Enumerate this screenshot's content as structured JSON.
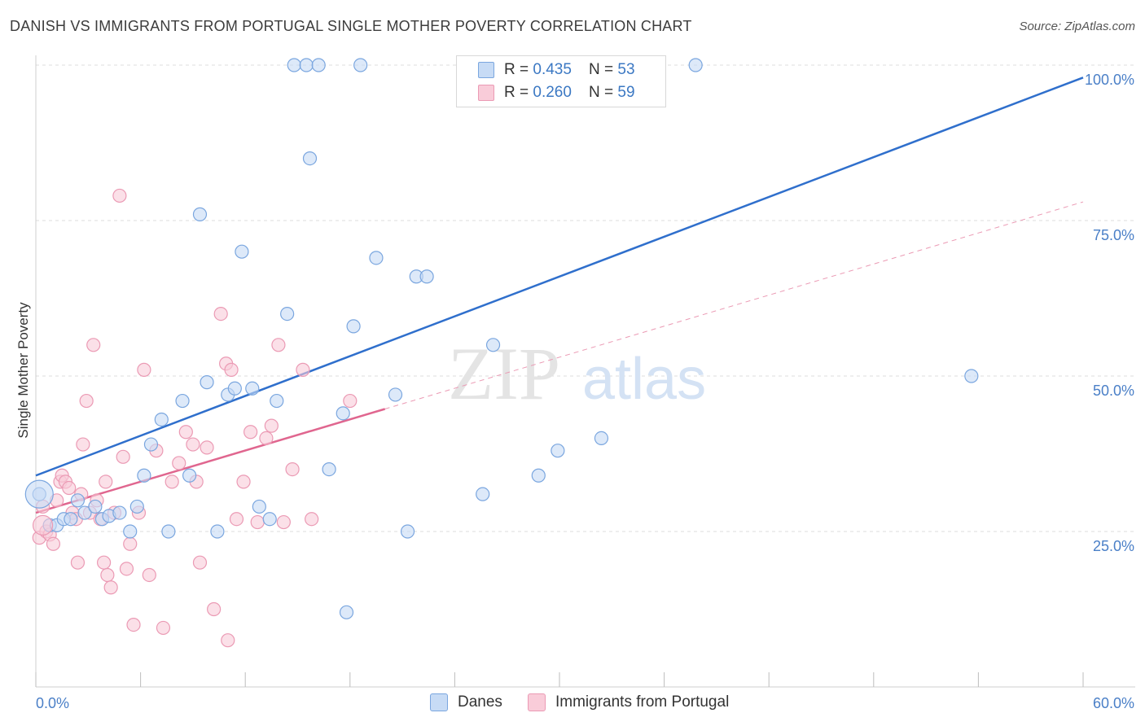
{
  "header": {
    "title": "DANISH VS IMMIGRANTS FROM PORTUGAL SINGLE MOTHER POVERTY CORRELATION CHART",
    "source": "Source: ZipAtlas.com"
  },
  "watermark": {
    "zip": "ZIP",
    "atlas": "atlas"
  },
  "legend": {
    "rows": [
      {
        "r_label": "R = ",
        "r_value": "0.435",
        "n_label": "N = ",
        "n_value": "53"
      },
      {
        "r_label": "R = ",
        "r_value": "0.260",
        "n_label": "N = ",
        "n_value": "59"
      }
    ]
  },
  "colors": {
    "danes_fill": "#c7dbf5",
    "danes_stroke": "#7aa6df",
    "danes_line": "#2f6fcc",
    "portugal_fill": "#f9ccd9",
    "portugal_stroke": "#eb9ab4",
    "portugal_line": "#e0668f",
    "grid": "#dcdcdc",
    "tick_text": "#4a7fc7"
  },
  "chart_data": {
    "type": "scatter",
    "title": "DANISH VS IMMIGRANTS FROM PORTUGAL SINGLE MOTHER POVERTY CORRELATION CHART",
    "xlabel": "",
    "ylabel": "Single Mother Poverty",
    "xlim": [
      0,
      60
    ],
    "ylim": [
      0,
      100
    ],
    "x_tick_labels": [
      "0.0%",
      "60.0%"
    ],
    "y_tick_labels": [
      "25.0%",
      "50.0%",
      "75.0%",
      "100.0%"
    ],
    "y_ticks": [
      25,
      50,
      75,
      100
    ],
    "grid": true,
    "legend_position": "top-center",
    "series": [
      {
        "name": "Danes",
        "R": 0.435,
        "N": 53,
        "trendline": {
          "x": [
            0,
            60
          ],
          "y": [
            34,
            98
          ],
          "style": "solid"
        },
        "points": [
          [
            0.2,
            31
          ],
          [
            0.8,
            26
          ],
          [
            1.2,
            26
          ],
          [
            1.6,
            27
          ],
          [
            2.0,
            27
          ],
          [
            2.4,
            30
          ],
          [
            2.8,
            28
          ],
          [
            3.4,
            29
          ],
          [
            3.8,
            27
          ],
          [
            4.2,
            27.5
          ],
          [
            4.8,
            28
          ],
          [
            5.4,
            25
          ],
          [
            5.8,
            29
          ],
          [
            6.2,
            34
          ],
          [
            6.6,
            39
          ],
          [
            7.2,
            43
          ],
          [
            7.6,
            25
          ],
          [
            8.4,
            46
          ],
          [
            8.8,
            34
          ],
          [
            9.4,
            76
          ],
          [
            9.8,
            49
          ],
          [
            10.4,
            25
          ],
          [
            11.0,
            47
          ],
          [
            11.4,
            48
          ],
          [
            11.8,
            70
          ],
          [
            12.4,
            48
          ],
          [
            12.8,
            29
          ],
          [
            13.4,
            27
          ],
          [
            13.8,
            46
          ],
          [
            14.4,
            60
          ],
          [
            14.8,
            100
          ],
          [
            15.5,
            100
          ],
          [
            15.7,
            85
          ],
          [
            16.2,
            100
          ],
          [
            16.8,
            35
          ],
          [
            17.6,
            44
          ],
          [
            17.8,
            12
          ],
          [
            18.2,
            58
          ],
          [
            18.6,
            100
          ],
          [
            19.5,
            69
          ],
          [
            20.6,
            47
          ],
          [
            21.3,
            25
          ],
          [
            21.8,
            66
          ],
          [
            22.4,
            66
          ],
          [
            25.6,
            31
          ],
          [
            26.2,
            55
          ],
          [
            26.5,
            100
          ],
          [
            28.8,
            34
          ],
          [
            29.5,
            100
          ],
          [
            29.9,
            38
          ],
          [
            32.4,
            40
          ],
          [
            37.8,
            100
          ],
          [
            53.6,
            50
          ]
        ]
      },
      {
        "name": "Immigrants from Portugal",
        "R": 0.26,
        "N": 59,
        "trendline": {
          "x": [
            0,
            20
          ],
          "y": [
            28,
            44.7
          ],
          "style": "solid"
        },
        "trendline_extended": {
          "x": [
            20,
            60
          ],
          "y": [
            44.7,
            78
          ],
          "style": "dashed"
        },
        "points": [
          [
            0.2,
            24
          ],
          [
            0.4,
            29
          ],
          [
            0.6,
            25
          ],
          [
            0.8,
            24.5
          ],
          [
            1.0,
            23
          ],
          [
            1.2,
            30
          ],
          [
            1.4,
            33
          ],
          [
            1.5,
            34
          ],
          [
            1.7,
            33
          ],
          [
            1.9,
            32
          ],
          [
            2.1,
            28
          ],
          [
            2.3,
            27
          ],
          [
            2.4,
            20
          ],
          [
            2.6,
            31
          ],
          [
            2.7,
            39
          ],
          [
            2.9,
            46
          ],
          [
            3.1,
            28
          ],
          [
            3.3,
            55
          ],
          [
            3.5,
            30
          ],
          [
            3.7,
            27
          ],
          [
            3.9,
            20
          ],
          [
            4.1,
            18
          ],
          [
            4.3,
            16
          ],
          [
            4.5,
            28
          ],
          [
            4.8,
            79
          ],
          [
            5.0,
            37
          ],
          [
            5.2,
            19
          ],
          [
            5.4,
            23
          ],
          [
            5.6,
            10
          ],
          [
            5.9,
            28
          ],
          [
            6.2,
            51
          ],
          [
            6.5,
            18
          ],
          [
            6.9,
            38
          ],
          [
            7.3,
            9.5
          ],
          [
            7.8,
            33
          ],
          [
            8.2,
            36
          ],
          [
            8.6,
            41
          ],
          [
            9.0,
            39
          ],
          [
            9.4,
            20
          ],
          [
            9.8,
            38.5
          ],
          [
            10.2,
            12.5
          ],
          [
            10.6,
            60
          ],
          [
            10.9,
            52
          ],
          [
            11.2,
            51
          ],
          [
            11.5,
            27
          ],
          [
            11.9,
            33
          ],
          [
            12.3,
            41
          ],
          [
            12.7,
            26.5
          ],
          [
            13.2,
            40
          ],
          [
            13.5,
            42
          ],
          [
            13.9,
            55
          ],
          [
            14.2,
            26.5
          ],
          [
            14.7,
            35
          ],
          [
            15.3,
            51
          ],
          [
            15.8,
            27
          ],
          [
            18.0,
            46
          ],
          [
            11.0,
            7.5
          ],
          [
            9.2,
            33
          ],
          [
            4.0,
            33
          ]
        ]
      }
    ]
  },
  "bottom_legend": {
    "items": [
      {
        "label": "Danes"
      },
      {
        "label": "Immigrants from Portugal"
      }
    ]
  }
}
